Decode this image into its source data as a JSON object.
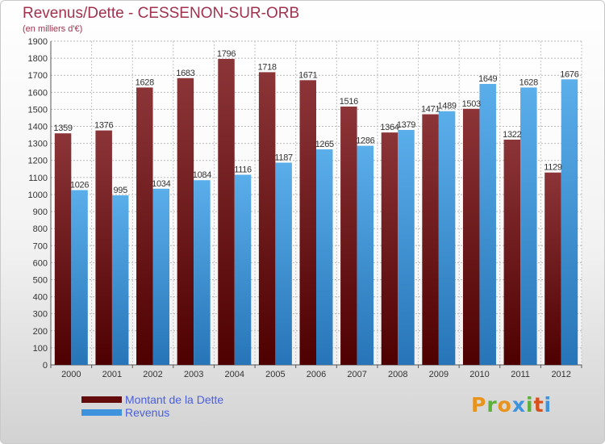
{
  "header": {
    "title": "Revenus/Dette - CESSENON-SUR-ORB",
    "subtitle": "(en milliers d'€)"
  },
  "colors": {
    "title": "#a0324e",
    "dette_top": "#8c3538",
    "dette_bottom": "#4e0000",
    "revenus_top": "#5aaeea",
    "revenus_bottom": "#2775b8",
    "legend_text": "#4a5fe0"
  },
  "legend": {
    "items": [
      {
        "label": "Montant de la Dette",
        "color": "#640c0c"
      },
      {
        "label": "Revenus",
        "color": "#3e93dc"
      }
    ]
  },
  "brand": {
    "text": "Proxiti",
    "colors": [
      "#e8931c",
      "#5cb13b",
      "#e8931c",
      "#3e93dc",
      "#5cb13b",
      "#d94f1a",
      "#3e93dc"
    ]
  },
  "chart_data": {
    "type": "bar",
    "categories": [
      "2000",
      "2001",
      "2002",
      "2003",
      "2004",
      "2005",
      "2006",
      "2007",
      "2008",
      "2009",
      "2010",
      "2011",
      "2012"
    ],
    "series": [
      {
        "name": "Montant de la Dette",
        "values": [
          1359,
          1376,
          1628,
          1683,
          1796,
          1718,
          1671,
          1516,
          1364,
          1471,
          1503,
          1322,
          1129
        ]
      },
      {
        "name": "Revenus",
        "values": [
          1026,
          995,
          1034,
          1084,
          1116,
          1187,
          1265,
          1286,
          1379,
          1489,
          1649,
          1628,
          1676
        ]
      }
    ],
    "title": "Revenus/Dette - CESSENON-SUR-ORB",
    "ylabel": "(en milliers d'€)",
    "ylim": [
      0,
      1900
    ],
    "ytick_step": 100,
    "grid": true,
    "legend_position": "bottom-left"
  }
}
